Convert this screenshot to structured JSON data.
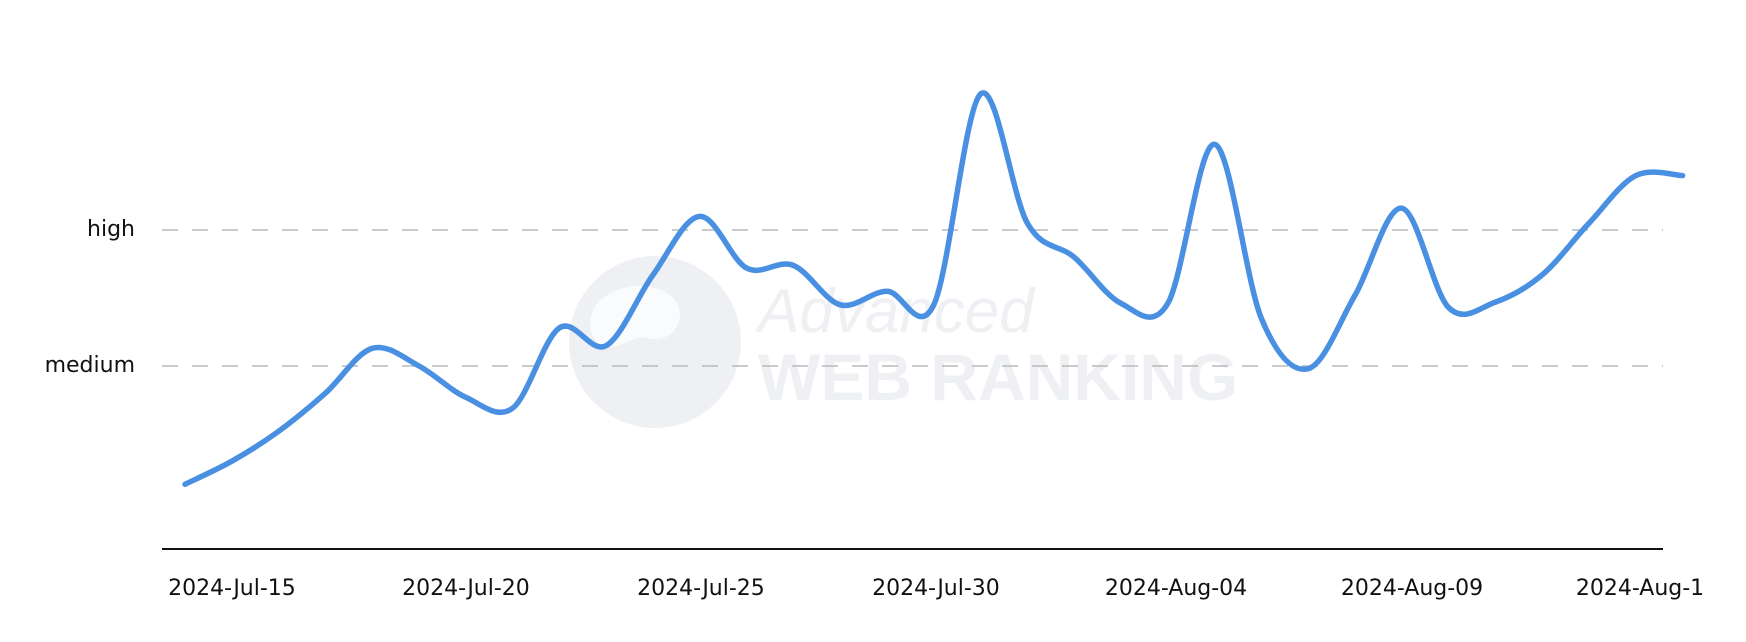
{
  "chart_data": {
    "type": "line",
    "title": "",
    "xlabel": "",
    "ylabel": "",
    "y_levels": [
      "medium",
      "high"
    ],
    "y_level_values": [
      1,
      2
    ],
    "ylim": [
      0,
      3
    ],
    "x_ticks": [
      "2024-Jul-15",
      "2024-Jul-20",
      "2024-Jul-25",
      "2024-Jul-30",
      "2024-Aug-04",
      "2024-Aug-09",
      "2024-Aug-1"
    ],
    "grid": "horizontal dashed at medium and high",
    "series_color": "#4a90e2",
    "x": [
      "2024-Jul-14",
      "2024-Jul-15",
      "2024-Jul-16",
      "2024-Jul-17",
      "2024-Jul-18",
      "2024-Jul-19",
      "2024-Jul-20",
      "2024-Jul-21",
      "2024-Jul-22",
      "2024-Jul-23",
      "2024-Jul-24",
      "2024-Jul-25",
      "2024-Jul-26",
      "2024-Jul-27",
      "2024-Jul-28",
      "2024-Jul-29",
      "2024-Jul-30",
      "2024-Jul-31",
      "2024-Aug-01",
      "2024-Aug-02",
      "2024-Aug-03",
      "2024-Aug-04",
      "2024-Aug-05",
      "2024-Aug-06",
      "2024-Aug-07",
      "2024-Aug-08",
      "2024-Aug-09",
      "2024-Aug-10",
      "2024-Aug-11",
      "2024-Aug-12",
      "2024-Aug-13",
      "2024-Aug-14",
      "2024-Aug-15"
    ],
    "values": [
      0.13,
      0.3,
      0.52,
      0.8,
      1.13,
      1.0,
      0.77,
      0.69,
      1.28,
      1.15,
      1.67,
      2.1,
      1.72,
      1.74,
      1.45,
      1.55,
      1.45,
      3.0,
      2.05,
      1.8,
      1.46,
      1.46,
      2.63,
      1.35,
      0.98,
      1.52,
      2.16,
      1.43,
      1.47,
      1.67,
      2.05,
      2.4,
      2.4
    ]
  },
  "watermark": {
    "line1": "Advanced",
    "line2": "WEB RANKING"
  }
}
